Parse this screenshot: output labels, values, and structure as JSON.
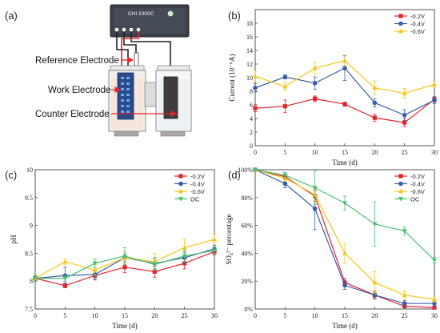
{
  "panel_labels": [
    "(a)",
    "(b)",
    "(c)",
    "(d)"
  ],
  "schematic": {
    "device_label": "CHI 1000C",
    "reference_label": "Reference Electrode",
    "work_label": "Work Electrode",
    "counter_label": "Counter Electrode"
  },
  "colors": {
    "s1": "#e3242b",
    "s2": "#3a5ea8",
    "s3": "#f5c518",
    "s4": "#4cbf72"
  },
  "chart_data": [
    {
      "type": "line",
      "xlabel": "Time (d)",
      "ylabel": "Current (10⁻⁶A)",
      "xlim": [
        0,
        30
      ],
      "ylim": [
        0,
        20
      ],
      "xticks": [
        "0",
        "5",
        "10",
        "15",
        "20",
        "25",
        "30"
      ],
      "yticks": [
        "0",
        "2",
        "4",
        "6",
        "8",
        "10",
        "12",
        "14",
        "16",
        "18"
      ],
      "legend_position": "top-right",
      "x": [
        0,
        5,
        10,
        15,
        20,
        25,
        30
      ],
      "series": [
        {
          "name": "-0.2V",
          "values": [
            5.5,
            5.8,
            6.9,
            6.1,
            4.1,
            3.4,
            6.8
          ],
          "errors": [
            0.5,
            0.9,
            0.4,
            0.3,
            0.5,
            0.6,
            0.4
          ]
        },
        {
          "name": "-0.4V",
          "values": [
            8.5,
            10.1,
            9.2,
            11.4,
            6.3,
            4.5,
            6.7
          ],
          "errors": [
            0.6,
            0.3,
            0.9,
            1.8,
            0.6,
            0.8,
            0.5
          ]
        },
        {
          "name": "-0.6V",
          "values": [
            10.2,
            8.7,
            11.4,
            12.5,
            8.5,
            7.7,
            9.0
          ],
          "errors": [
            0.8,
            0.6,
            0.9,
            0.8,
            1.0,
            0.7,
            0.5
          ]
        }
      ]
    },
    {
      "type": "line",
      "xlabel": "Time (d)",
      "ylabel": "pH",
      "xlim": [
        0,
        30
      ],
      "ylim": [
        7.5,
        10
      ],
      "xticks": [
        "0",
        "5",
        "10",
        "15",
        "20",
        "25",
        "30"
      ],
      "yticks": [
        "7.5",
        "8",
        "8.5",
        "9",
        "9.5",
        "10"
      ],
      "legend_position": "top-right",
      "x": [
        0,
        5,
        10,
        15,
        20,
        25,
        30
      ],
      "series": [
        {
          "name": "-0.2V",
          "values": [
            8.05,
            7.92,
            8.1,
            8.25,
            8.17,
            8.32,
            8.53
          ],
          "errors": [
            0.05,
            0.04,
            0.08,
            0.1,
            0.1,
            0.1,
            0.06
          ]
        },
        {
          "name": "-0.4V",
          "values": [
            8.05,
            8.1,
            8.12,
            8.42,
            8.32,
            8.42,
            8.58
          ],
          "errors": [
            0.05,
            0.15,
            0.08,
            0.1,
            0.1,
            0.1,
            0.06
          ]
        },
        {
          "name": "-0.6V",
          "values": [
            8.05,
            8.35,
            8.2,
            8.42,
            8.35,
            8.6,
            8.75
          ],
          "errors": [
            0.05,
            0.05,
            0.1,
            0.1,
            0.15,
            0.15,
            0.1
          ]
        },
        {
          "name": "OC",
          "values": [
            8.05,
            8.05,
            8.32,
            8.45,
            8.3,
            8.45,
            8.55
          ],
          "errors": [
            0.05,
            0.05,
            0.08,
            0.15,
            0.1,
            0.1,
            0.06
          ]
        }
      ]
    },
    {
      "type": "line",
      "xlabel": "Time (d)",
      "ylabel": "SO₄²⁻ percentage",
      "xlim": [
        0,
        30
      ],
      "ylim": [
        0,
        100
      ],
      "xticks": [
        "0",
        "5",
        "10",
        "15",
        "20",
        "25",
        "30"
      ],
      "yticks": [
        "0%",
        "20%",
        "40%",
        "60%",
        "80%",
        "100%"
      ],
      "legend_position": "top-right",
      "x": [
        0,
        5,
        10,
        15,
        20,
        25,
        30
      ],
      "series": [
        {
          "name": "-0.2V",
          "values": [
            100,
            95,
            81,
            19,
            10,
            2,
            1
          ],
          "errors": [
            0,
            2,
            4,
            3,
            3,
            1,
            1
          ]
        },
        {
          "name": "-0.4V",
          "values": [
            100,
            90,
            72,
            17,
            10,
            4,
            4
          ],
          "errors": [
            0,
            3,
            15,
            3,
            2,
            2,
            2
          ]
        },
        {
          "name": "-0.6V",
          "values": [
            100,
            94,
            82,
            40,
            19,
            10,
            7
          ],
          "errors": [
            0,
            2,
            4,
            7,
            8,
            3,
            2
          ]
        },
        {
          "name": "OC",
          "values": [
            100,
            96,
            87,
            76,
            61,
            56,
            35
          ],
          "errors": [
            0,
            2,
            12,
            5,
            16,
            3,
            2
          ]
        }
      ]
    }
  ]
}
